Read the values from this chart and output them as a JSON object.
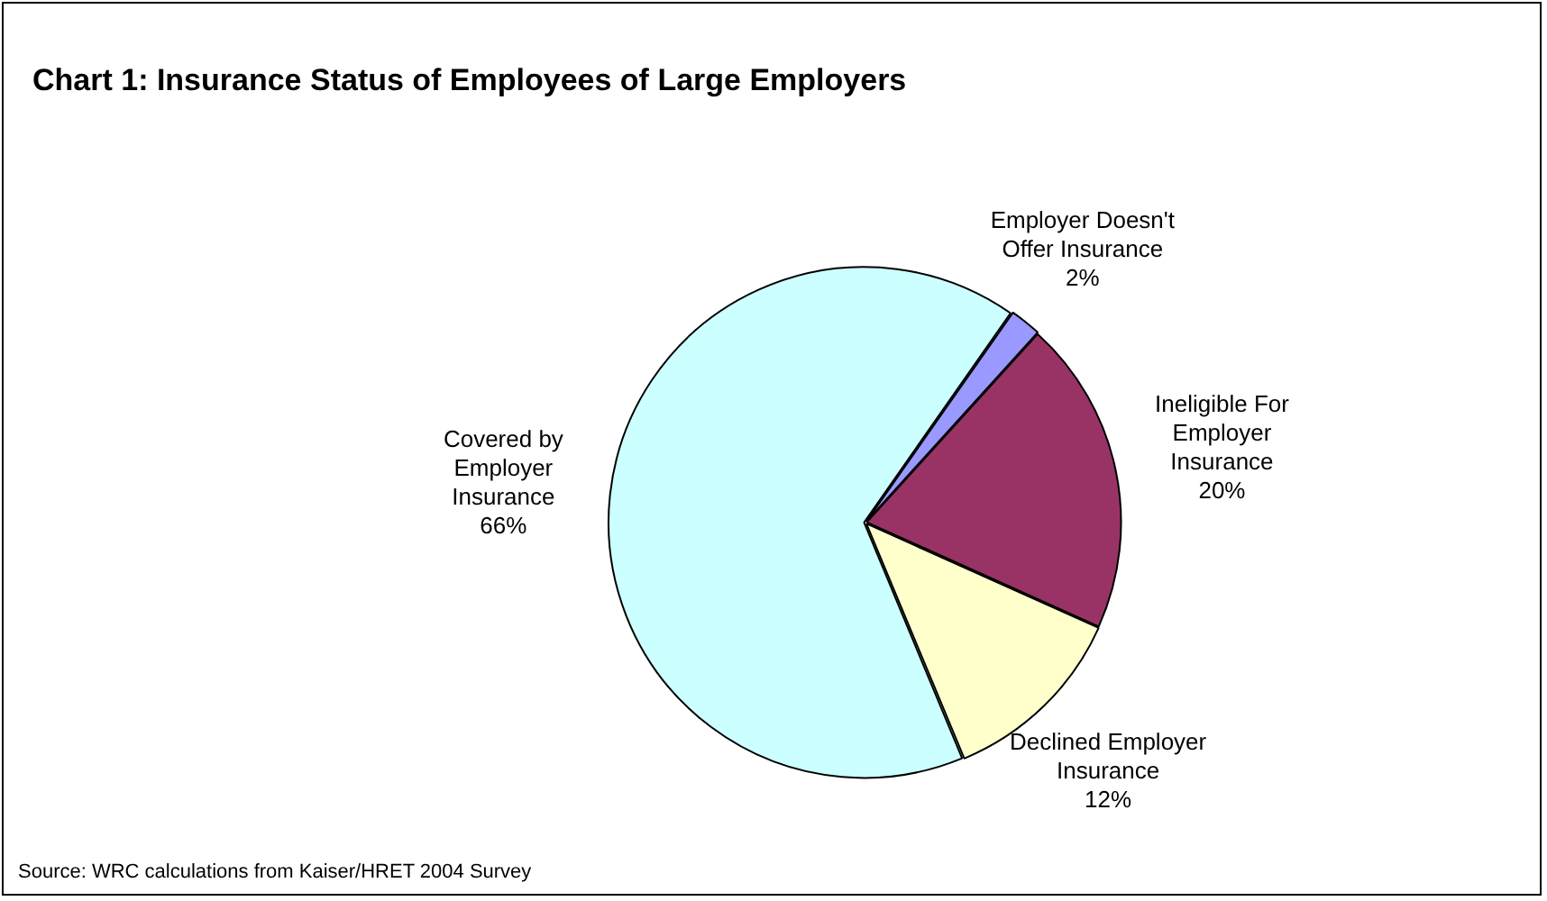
{
  "chart_data": {
    "type": "pie",
    "title": "Chart 1: Insurance Status of Employees of Large Employers",
    "categories": [
      "Employer Doesn't\nOffer Insurance",
      "Ineligible For\nEmployer\nInsurance",
      "Declined Employer\nInsurance",
      "Covered by\nEmployer\nInsurance"
    ],
    "values": [
      2,
      20,
      12,
      66
    ],
    "value_labels": [
      "2%",
      "20%",
      "12%",
      "66%"
    ],
    "colors": [
      "#9999ff",
      "#993366",
      "#ffffcc",
      "#ccffff"
    ],
    "annotations": [
      "Source: WRC calculations from Kaiser/HRET 2004 Survey"
    ]
  }
}
